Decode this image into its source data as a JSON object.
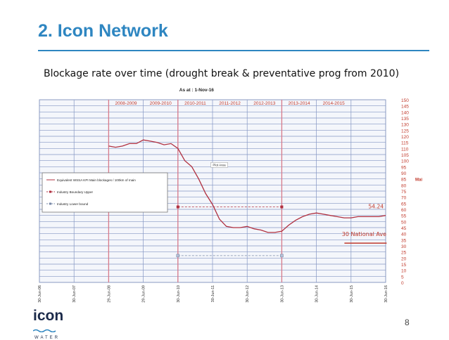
{
  "slide": {
    "title": "2. Icon Network",
    "subtitle": "Blockage rate over time (drought break & preventative prog from 2010)",
    "page_number": "8",
    "logo": {
      "name": "icon",
      "tagline": "WATER"
    }
  },
  "chart_data": {
    "type": "line",
    "header": "As at : 1-Nov-16",
    "y_axis_label": "Mains",
    "ylim": [
      0,
      150
    ],
    "y_ticks": [
      0,
      5,
      10,
      15,
      20,
      25,
      30,
      35,
      40,
      45,
      50,
      55,
      60,
      65,
      70,
      75,
      80,
      85,
      90,
      95,
      100,
      105,
      110,
      115,
      120,
      125,
      130,
      135,
      140,
      145,
      150
    ],
    "x_ticks": [
      "30-Jun-06",
      "30-Jun-07",
      "29-Jun-08",
      "29-Jun-09",
      "30-Jun-10",
      "30-Jun-11",
      "30-Jun-12",
      "30-Jun-13",
      "30-Jun-14",
      "30-Jun-15",
      "30-Jun-16"
    ],
    "periods": [
      "2008-2009",
      "2009-2010",
      "2010-2011",
      "2011-2012",
      "2012-2013",
      "2013-2014",
      "2014-2015"
    ],
    "markers_at": [
      "30-Jun-08",
      "30-Jun-10",
      "30-Jun-13"
    ],
    "plot_area_label": "Plot Area",
    "legend": [
      {
        "label": "Equivalent WSSA KPI Main blockages / 100km of main",
        "style": "solid",
        "color": "#b03040"
      },
      {
        "label": "Industry Boundary Upper",
        "style": "dashed",
        "color": "#b03040",
        "marker": "square"
      },
      {
        "label": "Industry Lower bound",
        "style": "dashed",
        "color": "#7a8aa8",
        "marker": "square"
      }
    ],
    "series": [
      {
        "name": "Equivalent WSSA KPI Main blockages / 100km of main",
        "x": [
          2008.0,
          2008.2,
          2008.4,
          2008.6,
          2008.8,
          2009.0,
          2009.2,
          2009.4,
          2009.6,
          2009.8,
          2010.0,
          2010.2,
          2010.4,
          2010.6,
          2010.8,
          2011.0,
          2011.2,
          2011.4,
          2011.6,
          2011.8,
          2012.0,
          2012.2,
          2012.4,
          2012.6,
          2012.8,
          2013.0,
          2013.2,
          2013.4,
          2013.6,
          2013.8,
          2014.0,
          2014.2,
          2014.4,
          2014.6,
          2014.8,
          2015.0,
          2015.2,
          2015.4,
          2015.6,
          2015.8,
          2016.0
        ],
        "y": [
          112,
          111,
          112,
          114,
          114,
          117,
          116,
          115,
          113,
          114,
          110,
          100,
          95,
          85,
          73,
          64,
          52,
          46,
          45,
          45,
          46,
          44,
          43,
          41,
          41,
          42,
          47,
          51,
          54,
          56,
          57,
          56,
          55,
          54,
          53,
          53,
          54,
          54,
          54,
          54,
          55
        ]
      },
      {
        "name": "Industry Boundary Upper",
        "x": [
          2010.0,
          2013.0
        ],
        "y": [
          62,
          62
        ]
      },
      {
        "name": "Industry Lower bound",
        "x": [
          2010.0,
          2013.0
        ],
        "y": [
          22,
          22
        ]
      }
    ],
    "annotations": [
      {
        "text": "54.24",
        "x": 2016.0,
        "y": 62
      },
      {
        "text": "30 National Ave",
        "x": 2015.5,
        "y": 38
      }
    ]
  }
}
